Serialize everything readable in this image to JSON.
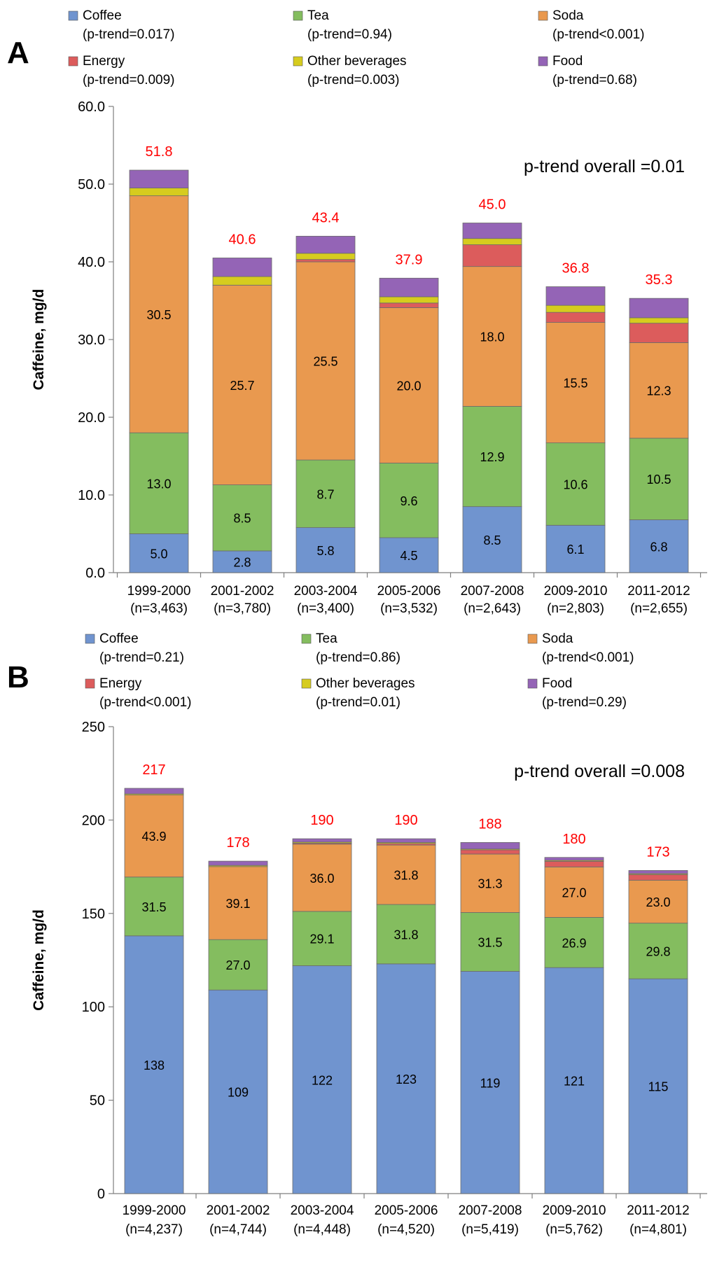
{
  "colors": {
    "coffee": "#7094CF",
    "tea": "#84BD5F",
    "soda": "#E9994F",
    "energy": "#DC5C5C",
    "other": "#D6CC1E",
    "food": "#9464B6",
    "total_label": "#FF0000",
    "axis": "#7F7F7F"
  },
  "chart_data": [
    {
      "type": "bar",
      "stacked": true,
      "panel_label": "A",
      "title": "",
      "xlabel": "",
      "ylabel": "Caffeine, mg/d",
      "ylim": [
        0,
        60
      ],
      "yticks": [
        "0.0",
        "10.0",
        "20.0",
        "30.0",
        "40.0",
        "50.0",
        "60.0"
      ],
      "annotation": "p-trend overall =0.01",
      "categories": [
        "1999-2000",
        "2001-2002",
        "2003-2004",
        "2005-2006",
        "2007-2008",
        "2009-2010",
        "2011-2012"
      ],
      "category_sublabels": [
        "(n=3,463)",
        "(n=3,780)",
        "(n=3,400)",
        "(n=3,532)",
        "(n=2,643)",
        "(n=2,803)",
        "(n=2,655)"
      ],
      "totals": [
        "51.8",
        "40.6",
        "43.4",
        "37.9",
        "45.0",
        "36.8",
        "35.3"
      ],
      "legend": [
        {
          "name": "Coffee",
          "trend": "(p-trend=0.017)"
        },
        {
          "name": "Tea",
          "trend": "(p-trend=0.94)"
        },
        {
          "name": "Soda",
          "trend": "(p-trend<0.001)"
        },
        {
          "name": "Energy",
          "trend": "(p-trend=0.009)"
        },
        {
          "name": "Other beverages",
          "trend": "(p-trend=0.003)"
        },
        {
          "name": "Food",
          "trend": "(p-trend=0.68)"
        }
      ],
      "series": [
        {
          "name": "Coffee",
          "values": [
            5.0,
            2.8,
            5.8,
            4.5,
            8.5,
            6.1,
            6.8
          ],
          "labels": [
            "5.0",
            "2.8",
            "5.8",
            "4.5",
            "8.5",
            "6.1",
            "6.8"
          ]
        },
        {
          "name": "Tea",
          "values": [
            13.0,
            8.5,
            8.7,
            9.6,
            12.9,
            10.6,
            10.5
          ],
          "labels": [
            "13.0",
            "8.5",
            "8.7",
            "9.6",
            "12.9",
            "10.6",
            "10.5"
          ]
        },
        {
          "name": "Soda",
          "values": [
            30.5,
            25.7,
            25.5,
            20.0,
            18.0,
            15.5,
            12.3
          ],
          "labels": [
            "30.5",
            "25.7",
            "25.5",
            "20.0",
            "18.0",
            "15.5",
            "12.3"
          ]
        },
        {
          "name": "Energy",
          "values": [
            0.0,
            0.0,
            0.3,
            0.6,
            2.8,
            1.3,
            2.5
          ],
          "labels": []
        },
        {
          "name": "Other beverages",
          "values": [
            1.0,
            1.1,
            0.8,
            0.8,
            0.8,
            0.9,
            0.7
          ],
          "labels": []
        },
        {
          "name": "Food",
          "values": [
            2.3,
            2.4,
            2.2,
            2.4,
            2.0,
            2.4,
            2.5
          ],
          "labels": []
        }
      ]
    },
    {
      "type": "bar",
      "stacked": true,
      "panel_label": "B",
      "title": "",
      "xlabel": "",
      "ylabel": "Caffeine, mg/d",
      "ylim": [
        0,
        250
      ],
      "yticks": [
        "0",
        "50",
        "100",
        "150",
        "200",
        "250"
      ],
      "annotation": "p-trend overall =0.008",
      "categories": [
        "1999-2000",
        "2001-2002",
        "2003-2004",
        "2005-2006",
        "2007-2008",
        "2009-2010",
        "2011-2012"
      ],
      "category_sublabels": [
        "(n=4,237)",
        "(n=4,744)",
        "(n=4,448)",
        "(n=4,520)",
        "(n=5,419)",
        "(n=5,762)",
        "(n=4,801)"
      ],
      "totals": [
        "217",
        "178",
        "190",
        "190",
        "188",
        "180",
        "173"
      ],
      "legend": [
        {
          "name": "Coffee",
          "trend": "(p-trend=0.21)"
        },
        {
          "name": "Tea",
          "trend": "(p-trend=0.86)"
        },
        {
          "name": "Soda",
          "trend": "(p-trend<0.001)"
        },
        {
          "name": "Energy",
          "trend": "(p-trend<0.001)"
        },
        {
          "name": "Other beverages",
          "trend": "(p-trend=0.01)"
        },
        {
          "name": "Food",
          "trend": "(p-trend=0.29)"
        }
      ],
      "series": [
        {
          "name": "Coffee",
          "values": [
            138,
            109,
            122,
            123,
            119,
            121,
            115
          ],
          "labels": [
            "138",
            "109",
            "122",
            "123",
            "119",
            "121",
            "115"
          ]
        },
        {
          "name": "Tea",
          "values": [
            31.5,
            27.0,
            29.1,
            31.8,
            31.5,
            26.9,
            29.8
          ],
          "labels": [
            "31.5",
            "27.0",
            "29.1",
            "31.8",
            "31.5",
            "26.9",
            "29.8"
          ]
        },
        {
          "name": "Soda",
          "values": [
            43.9,
            39.1,
            36.0,
            31.8,
            31.3,
            27.0,
            23.0
          ],
          "labels": [
            "43.9",
            "39.1",
            "36.0",
            "31.8",
            "31.3",
            "27.0",
            "23.0"
          ]
        },
        {
          "name": "Energy",
          "values": [
            0.0,
            0.0,
            0.5,
            0.8,
            2.2,
            3.0,
            3.0
          ],
          "labels": []
        },
        {
          "name": "Other beverages",
          "values": [
            0.6,
            0.6,
            0.6,
            0.6,
            0.5,
            0.5,
            0.5
          ],
          "labels": []
        },
        {
          "name": "Food",
          "values": [
            3.0,
            2.3,
            1.8,
            2.0,
            3.5,
            1.6,
            1.7
          ],
          "labels": []
        }
      ]
    }
  ]
}
